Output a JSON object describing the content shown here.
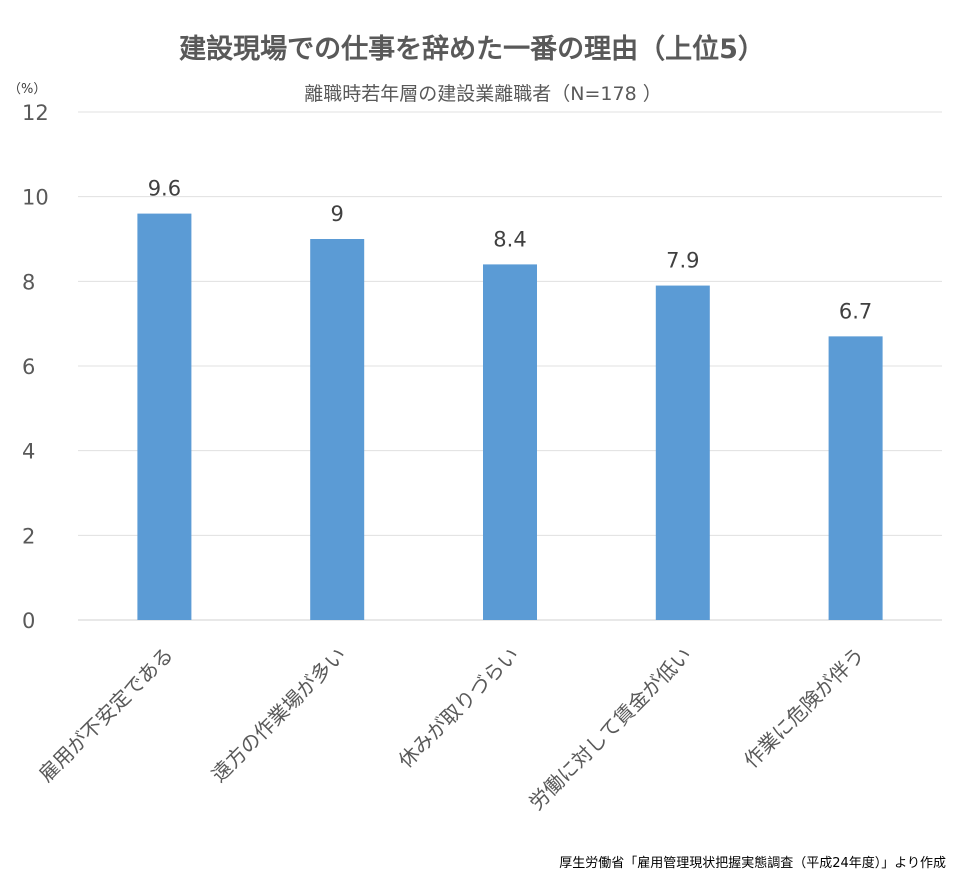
{
  "chart_data": {
    "type": "bar",
    "title": "建設現場での仕事を辞めた一番の理由（上位5）",
    "subtitle": "離職時若年層の建設業離職者（N=178 ）",
    "ylabel": "（%）",
    "xlabel": "",
    "categories": [
      "雇用が不安定である",
      "遠方の作業場が多い",
      "休みが取りづらい",
      "労働に対して賃金が低い",
      "作業に危険が伴う"
    ],
    "values": [
      9.6,
      9,
      8.4,
      7.9,
      6.7
    ],
    "data_labels": [
      "9.6",
      "9",
      "8.4",
      "7.9",
      "6.7"
    ],
    "ylim": [
      0,
      12
    ],
    "yticks": [
      0,
      2,
      4,
      6,
      8,
      10,
      12
    ],
    "grid": true,
    "bar_color": "#5B9BD5",
    "source": "厚生労働省「雇用管理現状把握実態調査（平成24年度）」より作成"
  }
}
